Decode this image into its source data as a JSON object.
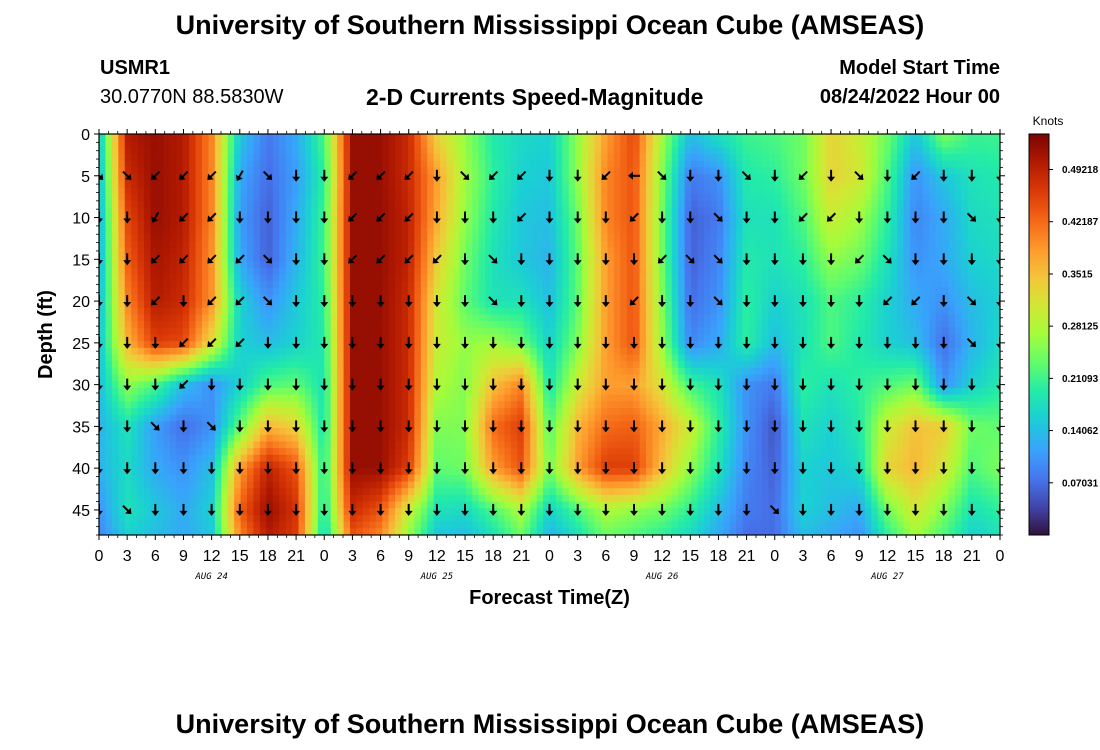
{
  "header": {
    "title": "University of Southern Mississippi Ocean Cube (AMSEAS)",
    "station_id": "USMR1",
    "station_coords": "30.0770N  88.5830W",
    "subtitle": "2-D Currents Speed-Magnitude",
    "model_start_label": "Model Start Time",
    "model_start_value": "08/24/2022 Hour 00"
  },
  "footer": {
    "title": "University of Southern Mississippi Ocean Cube (AMSEAS)"
  },
  "chart_data": {
    "type": "heatmap",
    "title": "2-D Currents Speed-Magnitude",
    "xlabel": "Forecast Time(Z)",
    "ylabel": "Depth (ft)",
    "x_tick_labels": [
      "0",
      "3",
      "6",
      "9",
      "12",
      "15",
      "18",
      "21",
      "0",
      "3",
      "6",
      "9",
      "12",
      "15",
      "18",
      "21",
      "0",
      "3",
      "6",
      "9",
      "12",
      "15",
      "18",
      "21",
      "0",
      "3",
      "6",
      "9",
      "12",
      "15",
      "18",
      "21",
      "0"
    ],
    "date_labels": [
      {
        "text": "AUG 24",
        "hour": 12
      },
      {
        "text": "AUG 25",
        "hour": 36
      },
      {
        "text": "AUG 26",
        "hour": 60
      },
      {
        "text": "AUG 27",
        "hour": 84
      }
    ],
    "xlim_hours": [
      0,
      96
    ],
    "ylim_ft": [
      0,
      48
    ],
    "y_ticks": [
      0,
      5,
      10,
      15,
      20,
      25,
      30,
      35,
      40,
      45
    ],
    "colorbar": {
      "label": "Knots",
      "range": [
        0.0,
        0.54
      ],
      "tick_values": [
        0.07031,
        0.14062,
        0.21093,
        0.28125,
        0.3515,
        0.42187,
        0.49218
      ],
      "tick_labels": [
        "0.07031",
        "0.14062",
        "0.21093",
        "0.28125",
        "0.3515",
        "0.42187",
        "0.49218"
      ]
    },
    "arrow_depths_ft": [
      5,
      10,
      15,
      20,
      25,
      30,
      35,
      40,
      45
    ],
    "speed_hours": [
      0,
      3,
      6,
      9,
      12,
      15,
      18,
      21,
      24,
      27,
      30,
      33,
      36,
      39,
      42,
      45,
      48,
      51,
      54,
      57,
      60,
      63,
      66,
      69,
      72,
      75,
      78,
      81,
      84,
      87,
      90,
      93,
      96
    ],
    "speed_depths_ft": [
      0,
      5,
      10,
      15,
      20,
      25,
      30,
      35,
      40,
      45,
      48
    ],
    "speed_knots": [
      [
        0.14,
        0.5,
        0.52,
        0.5,
        0.4,
        0.15,
        0.08,
        0.12,
        0.22,
        0.52,
        0.52,
        0.48,
        0.33,
        0.26,
        0.19,
        0.17,
        0.16,
        0.26,
        0.38,
        0.45,
        0.27,
        0.14,
        0.18,
        0.21,
        0.22,
        0.24,
        0.33,
        0.3,
        0.24,
        0.15,
        0.25,
        0.21,
        0.21
      ],
      [
        0.13,
        0.48,
        0.52,
        0.5,
        0.4,
        0.12,
        0.07,
        0.11,
        0.2,
        0.52,
        0.52,
        0.48,
        0.38,
        0.27,
        0.2,
        0.16,
        0.15,
        0.26,
        0.4,
        0.44,
        0.25,
        0.08,
        0.1,
        0.19,
        0.2,
        0.24,
        0.33,
        0.31,
        0.22,
        0.1,
        0.15,
        0.18,
        0.19
      ],
      [
        0.12,
        0.45,
        0.52,
        0.5,
        0.4,
        0.11,
        0.06,
        0.12,
        0.21,
        0.52,
        0.52,
        0.49,
        0.37,
        0.26,
        0.19,
        0.15,
        0.14,
        0.24,
        0.4,
        0.44,
        0.24,
        0.06,
        0.08,
        0.18,
        0.18,
        0.22,
        0.3,
        0.27,
        0.2,
        0.09,
        0.12,
        0.17,
        0.18
      ],
      [
        0.12,
        0.43,
        0.51,
        0.49,
        0.39,
        0.12,
        0.06,
        0.13,
        0.21,
        0.52,
        0.52,
        0.49,
        0.34,
        0.24,
        0.18,
        0.15,
        0.13,
        0.23,
        0.38,
        0.44,
        0.24,
        0.06,
        0.09,
        0.19,
        0.18,
        0.2,
        0.26,
        0.24,
        0.18,
        0.1,
        0.12,
        0.16,
        0.17
      ],
      [
        0.13,
        0.4,
        0.5,
        0.48,
        0.39,
        0.16,
        0.1,
        0.15,
        0.2,
        0.52,
        0.52,
        0.48,
        0.31,
        0.23,
        0.18,
        0.18,
        0.14,
        0.23,
        0.38,
        0.44,
        0.25,
        0.07,
        0.1,
        0.2,
        0.16,
        0.18,
        0.22,
        0.2,
        0.16,
        0.12,
        0.1,
        0.14,
        0.16
      ],
      [
        0.14,
        0.36,
        0.46,
        0.45,
        0.32,
        0.16,
        0.14,
        0.16,
        0.19,
        0.52,
        0.52,
        0.48,
        0.3,
        0.26,
        0.27,
        0.24,
        0.16,
        0.25,
        0.38,
        0.44,
        0.26,
        0.09,
        0.12,
        0.2,
        0.14,
        0.18,
        0.22,
        0.19,
        0.16,
        0.14,
        0.07,
        0.13,
        0.17
      ],
      [
        0.14,
        0.26,
        0.22,
        0.14,
        0.1,
        0.16,
        0.22,
        0.23,
        0.18,
        0.52,
        0.52,
        0.48,
        0.28,
        0.25,
        0.35,
        0.4,
        0.18,
        0.3,
        0.38,
        0.38,
        0.31,
        0.21,
        0.18,
        0.1,
        0.08,
        0.2,
        0.18,
        0.2,
        0.22,
        0.24,
        0.1,
        0.16,
        0.19
      ],
      [
        0.13,
        0.18,
        0.11,
        0.07,
        0.1,
        0.23,
        0.36,
        0.33,
        0.18,
        0.52,
        0.52,
        0.48,
        0.25,
        0.25,
        0.42,
        0.46,
        0.22,
        0.36,
        0.42,
        0.43,
        0.37,
        0.3,
        0.2,
        0.1,
        0.05,
        0.18,
        0.16,
        0.19,
        0.3,
        0.35,
        0.34,
        0.24,
        0.23
      ],
      [
        0.13,
        0.17,
        0.12,
        0.1,
        0.14,
        0.38,
        0.49,
        0.44,
        0.19,
        0.52,
        0.52,
        0.46,
        0.23,
        0.24,
        0.38,
        0.44,
        0.24,
        0.38,
        0.46,
        0.46,
        0.35,
        0.26,
        0.18,
        0.09,
        0.06,
        0.16,
        0.15,
        0.17,
        0.33,
        0.36,
        0.31,
        0.22,
        0.25
      ],
      [
        0.1,
        0.18,
        0.15,
        0.12,
        0.16,
        0.43,
        0.52,
        0.47,
        0.18,
        0.48,
        0.44,
        0.3,
        0.18,
        0.17,
        0.22,
        0.28,
        0.16,
        0.22,
        0.28,
        0.26,
        0.24,
        0.2,
        0.14,
        0.08,
        0.07,
        0.16,
        0.14,
        0.12,
        0.24,
        0.31,
        0.25,
        0.18,
        0.2
      ],
      [
        0.09,
        0.16,
        0.14,
        0.12,
        0.15,
        0.4,
        0.5,
        0.46,
        0.16,
        0.44,
        0.4,
        0.26,
        0.15,
        0.14,
        0.18,
        0.24,
        0.13,
        0.18,
        0.24,
        0.22,
        0.2,
        0.17,
        0.12,
        0.07,
        0.07,
        0.14,
        0.12,
        0.1,
        0.2,
        0.27,
        0.22,
        0.16,
        0.18
      ]
    ],
    "arrow_angles_deg": [
      [
        45,
        45,
        135,
        135,
        135,
        120,
        45,
        90,
        90,
        135,
        135,
        135,
        90,
        45,
        135,
        135,
        90,
        90,
        135,
        180,
        45,
        90,
        90,
        45,
        90,
        135,
        90,
        45,
        90,
        135,
        90,
        90,
        90
      ],
      [
        90,
        90,
        120,
        135,
        135,
        90,
        90,
        90,
        90,
        135,
        135,
        135,
        90,
        90,
        90,
        135,
        90,
        90,
        90,
        135,
        90,
        90,
        45,
        90,
        90,
        135,
        135,
        90,
        90,
        90,
        90,
        45,
        90
      ],
      [
        90,
        90,
        135,
        135,
        135,
        135,
        45,
        90,
        90,
        135,
        135,
        135,
        135,
        90,
        45,
        90,
        90,
        90,
        90,
        90,
        135,
        45,
        45,
        90,
        90,
        90,
        90,
        135,
        45,
        90,
        90,
        90,
        90
      ],
      [
        90,
        90,
        135,
        90,
        135,
        135,
        45,
        90,
        90,
        90,
        90,
        90,
        90,
        90,
        45,
        90,
        90,
        90,
        90,
        135,
        90,
        90,
        45,
        90,
        90,
        90,
        90,
        90,
        135,
        135,
        90,
        45,
        90
      ],
      [
        90,
        90,
        90,
        135,
        135,
        135,
        90,
        90,
        90,
        90,
        90,
        90,
        90,
        90,
        90,
        90,
        90,
        90,
        90,
        90,
        90,
        90,
        90,
        90,
        90,
        90,
        90,
        90,
        90,
        90,
        90,
        45,
        90
      ],
      [
        90,
        90,
        90,
        135,
        90,
        90,
        90,
        90,
        90,
        90,
        90,
        90,
        90,
        90,
        90,
        90,
        90,
        90,
        90,
        90,
        90,
        90,
        90,
        90,
        90,
        90,
        90,
        90,
        90,
        90,
        90,
        90,
        90
      ],
      [
        90,
        90,
        45,
        90,
        45,
        90,
        90,
        90,
        90,
        90,
        90,
        90,
        90,
        90,
        90,
        90,
        90,
        90,
        90,
        90,
        90,
        90,
        90,
        90,
        90,
        90,
        90,
        90,
        90,
        90,
        90,
        90,
        90
      ],
      [
        90,
        90,
        90,
        90,
        90,
        90,
        90,
        90,
        90,
        90,
        90,
        90,
        90,
        90,
        90,
        90,
        90,
        90,
        90,
        90,
        90,
        90,
        90,
        90,
        90,
        90,
        90,
        90,
        90,
        90,
        90,
        90,
        90
      ],
      [
        90,
        45,
        90,
        90,
        90,
        90,
        90,
        90,
        90,
        90,
        90,
        90,
        90,
        90,
        90,
        90,
        90,
        90,
        90,
        90,
        90,
        90,
        90,
        90,
        45,
        90,
        90,
        90,
        90,
        90,
        90,
        90,
        90
      ]
    ]
  }
}
